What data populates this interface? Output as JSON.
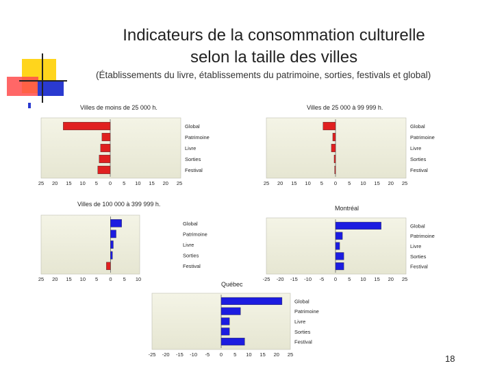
{
  "slide": {
    "title_line1": "Indicateurs de la consommation culturelle",
    "title_line2": "selon la taille des villes",
    "subtitle": "(Établissements du livre, établissements du patrimoine, sorties, festivals et global)",
    "page_number": "18",
    "colors": {
      "negative": "#e02020",
      "positive": "#1c1ce0",
      "plot_bg": "#e6e6d2"
    }
  },
  "chart_data": [
    {
      "type": "bar",
      "title": "Villes de moins de 25 000 h.",
      "categories": [
        "Global",
        "Patrimoine",
        "Livre",
        "Sorties",
        "Festival"
      ],
      "values": [
        -17,
        -3,
        -3.5,
        -4,
        -4.5
      ],
      "xlim": [
        -25,
        25
      ],
      "xticks": [
        "25",
        "20",
        "15",
        "10",
        "5",
        "0",
        "5",
        "10",
        "15",
        "20",
        "25"
      ],
      "orientation": "horizontal",
      "grid": false
    },
    {
      "type": "bar",
      "title": "Villes de 25 000 à 99 999 h.",
      "categories": [
        "Global",
        "Patrimoine",
        "Livre",
        "Sorties",
        "Festival"
      ],
      "values": [
        -4.5,
        -1,
        -1.5,
        -0.5,
        -0.3
      ],
      "xlim": [
        -25,
        25
      ],
      "xticks": [
        "25",
        "20",
        "15",
        "10",
        "5",
        "0",
        "5",
        "10",
        "15",
        "20",
        "25"
      ],
      "orientation": "horizontal",
      "grid": false
    },
    {
      "type": "bar",
      "title": "Villes de 100 000 à 399 999 h.",
      "categories": [
        "Global",
        "Patrimoine",
        "Livre",
        "Sorties",
        "Festival"
      ],
      "values": [
        4,
        2,
        1,
        0.7,
        -1.5
      ],
      "xlim": [
        -25,
        10
      ],
      "xticks": [
        "25",
        "20",
        "15",
        "10",
        "5",
        "0",
        "5",
        "10"
      ],
      "orientation": "horizontal",
      "grid": false
    },
    {
      "type": "bar",
      "title": "Montréal",
      "categories": [
        "Global",
        "Patrimoine",
        "Livre",
        "Sorties",
        "Festival"
      ],
      "values": [
        16.5,
        2.5,
        1.5,
        3,
        3
      ],
      "xlim": [
        -25,
        25
      ],
      "xticks": [
        "-25",
        "-20",
        "-15",
        "-10",
        "-5",
        "0",
        "5",
        "10",
        "15",
        "20",
        "25"
      ],
      "orientation": "horizontal",
      "grid": false
    },
    {
      "type": "bar",
      "title": "Québec",
      "categories": [
        "Global",
        "Patrimoine",
        "Livre",
        "Sorties",
        "Festival"
      ],
      "values": [
        22,
        7,
        3,
        3,
        8.5
      ],
      "xlim": [
        -25,
        25
      ],
      "xticks": [
        "-25",
        "-20",
        "-15",
        "-10",
        "-5",
        "0",
        "5",
        "10",
        "15",
        "20",
        "25"
      ],
      "orientation": "horizontal",
      "grid": false
    }
  ]
}
